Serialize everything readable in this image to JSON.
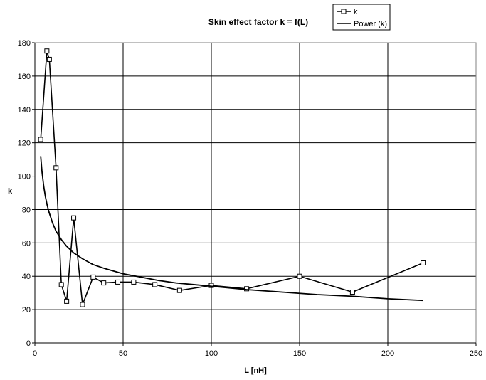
{
  "chart_data": {
    "type": "scatter",
    "title": "Skin effect factor k = f(L)",
    "xlabel": "L [nH]",
    "ylabel": "k",
    "xlim": [
      0,
      250
    ],
    "ylim": [
      0,
      180
    ],
    "x_ticks": [
      0,
      50,
      100,
      150,
      200,
      250
    ],
    "y_ticks": [
      0,
      20,
      40,
      60,
      80,
      100,
      120,
      140,
      160,
      180
    ],
    "grid": true,
    "legend_position": "top-right",
    "series": [
      {
        "name": "k",
        "style": "line-with-square-markers",
        "color": "#000000",
        "x": [
          3.3,
          6.8,
          8.2,
          12,
          15,
          18,
          22,
          27,
          33,
          39,
          47,
          56,
          68,
          82,
          100,
          120,
          150,
          180,
          220
        ],
        "y": [
          122,
          175,
          170,
          105,
          35,
          25,
          75,
          23,
          39.5,
          36,
          36.5,
          36.5,
          35,
          31.5,
          34.5,
          32.5,
          40,
          30.5,
          48
        ]
      },
      {
        "name": "Power (k)",
        "style": "line",
        "color": "#000000",
        "x": [
          3.3,
          4,
          5,
          6,
          7,
          8,
          10,
          12,
          15,
          18,
          22,
          27,
          33,
          40,
          50,
          60,
          70,
          80,
          90,
          100,
          120,
          140,
          160,
          180,
          200,
          220
        ],
        "y": [
          112,
          103,
          94,
          87.5,
          82.5,
          78.5,
          72,
          67,
          62,
          58,
          54,
          50.5,
          47,
          44.5,
          41.5,
          39.5,
          37.5,
          36,
          35,
          34,
          32,
          30.5,
          29,
          28,
          26.5,
          25.5
        ]
      }
    ]
  }
}
